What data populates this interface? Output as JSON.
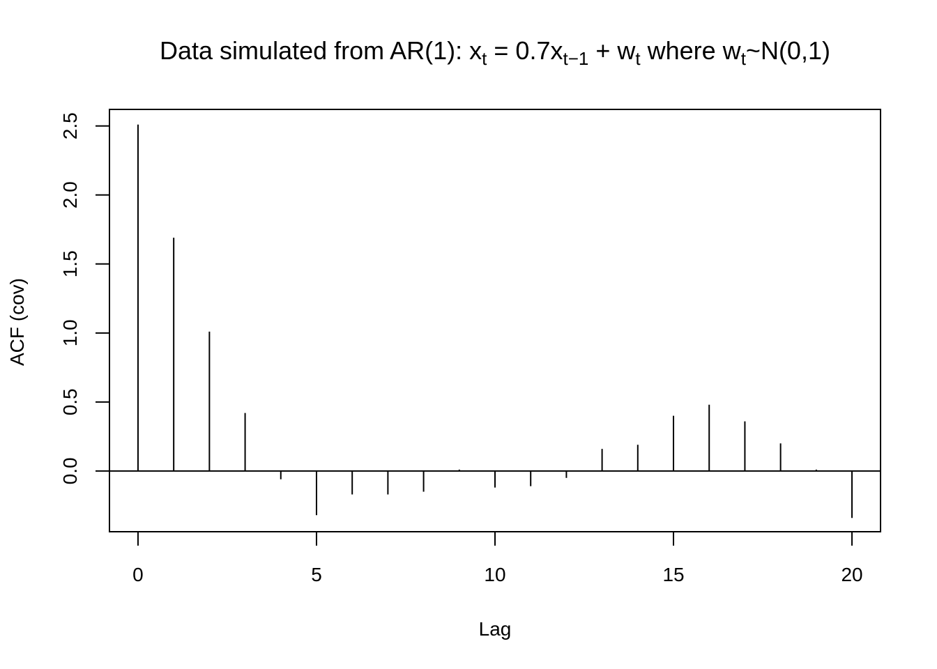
{
  "chart_data": {
    "type": "bar",
    "title": {
      "prefix": "Data simulated from AR(1): x",
      "sub1": "t",
      "eq": " = 0.7x",
      "sub2": "t−1",
      "plus": " + w",
      "sub3": "t",
      "mid": " where w",
      "sub4": "t",
      "suffix": "~N(0,1)"
    },
    "xlabel": "Lag",
    "ylabel": "ACF (cov)",
    "xlim": [
      -0.8,
      20.8
    ],
    "ylim": [
      -0.44,
      2.62
    ],
    "xticks": [
      0,
      5,
      10,
      15,
      20
    ],
    "xtick_labels": [
      "0",
      "5",
      "10",
      "15",
      "20"
    ],
    "yticks": [
      0.0,
      0.5,
      1.0,
      1.5,
      2.0,
      2.5
    ],
    "ytick_labels": [
      "0.0",
      "0.5",
      "1.0",
      "1.5",
      "2.0",
      "2.5"
    ],
    "grid": false,
    "x": [
      0,
      1,
      2,
      3,
      4,
      5,
      6,
      7,
      8,
      9,
      10,
      11,
      12,
      13,
      14,
      15,
      16,
      17,
      18,
      19,
      20
    ],
    "values": [
      2.51,
      1.69,
      1.01,
      0.42,
      -0.06,
      -0.32,
      -0.17,
      -0.17,
      -0.15,
      0.01,
      -0.12,
      -0.11,
      -0.05,
      0.16,
      0.19,
      0.4,
      0.48,
      0.36,
      0.2,
      0.01,
      -0.34
    ],
    "zero_line": true
  }
}
